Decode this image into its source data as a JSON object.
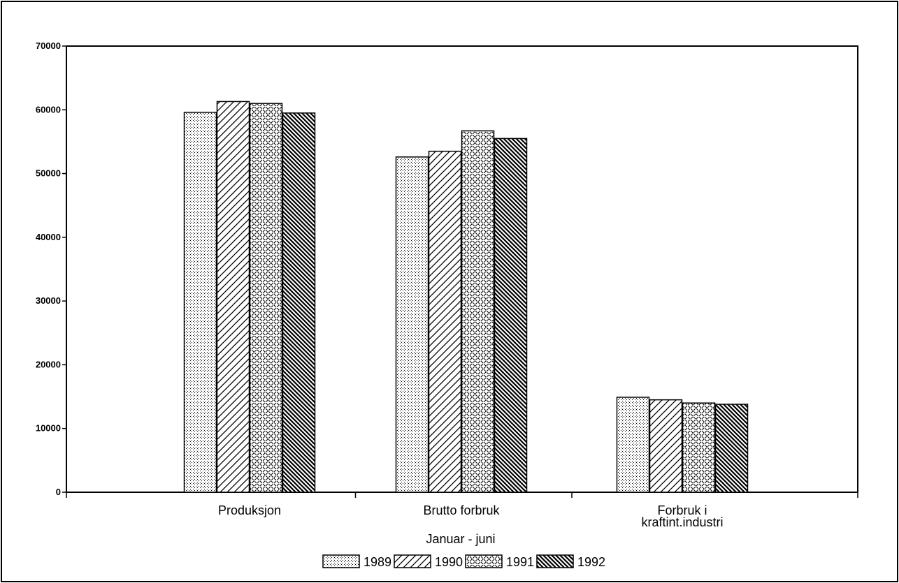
{
  "chart_data": {
    "type": "bar",
    "title": "",
    "xlabel": "Januar - juni",
    "ylabel": "",
    "ylim": [
      0,
      70000
    ],
    "yticks": [
      0,
      10000,
      20000,
      30000,
      40000,
      50000,
      60000,
      70000
    ],
    "categories": [
      [
        "Produksjon"
      ],
      [
        "Brutto forbruk"
      ],
      [
        "Forbruk i",
        "kraftint.industri"
      ]
    ],
    "series": [
      {
        "name": "1989",
        "pattern": "dots",
        "values": [
          59600,
          52600,
          14900
        ]
      },
      {
        "name": "1990",
        "pattern": "diagonal-fwd",
        "values": [
          61300,
          53500,
          14500
        ]
      },
      {
        "name": "1991",
        "pattern": "weave",
        "values": [
          61000,
          56700,
          14000
        ]
      },
      {
        "name": "1992",
        "pattern": "diagonal-back-dense",
        "values": [
          59500,
          55500,
          13800
        ]
      }
    ],
    "grid": false,
    "legend_position": "bottom-center",
    "colors": {
      "ink": "#000000",
      "background": "#ffffff"
    }
  }
}
